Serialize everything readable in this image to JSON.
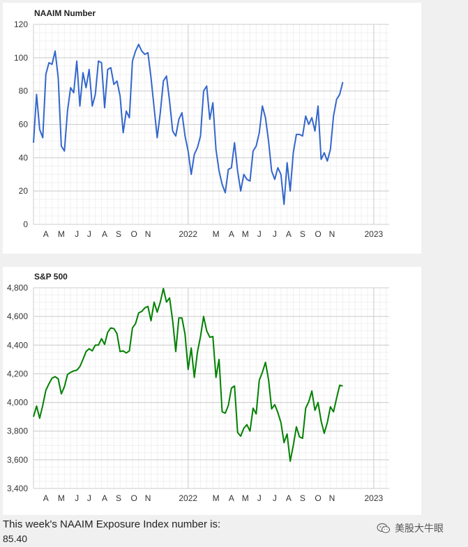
{
  "chart_data": [
    {
      "type": "line",
      "title": "NAAIM Number",
      "color": "#3366cc",
      "ylim": [
        0,
        120
      ],
      "yticks": [
        0,
        20,
        40,
        60,
        80,
        100,
        120
      ],
      "ytick_labels": [
        "0",
        "20",
        "40",
        "60",
        "80",
        "100",
        "120"
      ],
      "xlim": [
        0,
        115
      ],
      "xticks": [
        {
          "x": 4,
          "label": "A"
        },
        {
          "x": 9,
          "label": "M"
        },
        {
          "x": 14,
          "label": "J"
        },
        {
          "x": 18,
          "label": "J"
        },
        {
          "x": 23,
          "label": "A"
        },
        {
          "x": 27.5,
          "label": "S"
        },
        {
          "x": 32.5,
          "label": "O"
        },
        {
          "x": 37,
          "label": "N"
        },
        {
          "x": 50,
          "label": "2022"
        },
        {
          "x": 59,
          "label": "M"
        },
        {
          "x": 64,
          "label": "A"
        },
        {
          "x": 68.5,
          "label": "M"
        },
        {
          "x": 73,
          "label": "J"
        },
        {
          "x": 78,
          "label": "J"
        },
        {
          "x": 82.5,
          "label": "A"
        },
        {
          "x": 87,
          "label": "S"
        },
        {
          "x": 92,
          "label": "O"
        },
        {
          "x": 96.5,
          "label": "N"
        },
        {
          "x": 110,
          "label": "2023"
        }
      ],
      "grid": true,
      "values": [
        49,
        78,
        57,
        52,
        90,
        97,
        96,
        104,
        88,
        47,
        44,
        68,
        82,
        79,
        98,
        71,
        91,
        82,
        93,
        71,
        78,
        98,
        97,
        70,
        93,
        94,
        84,
        86,
        77,
        55,
        68,
        64,
        98,
        104,
        108,
        104,
        102,
        103,
        88,
        70,
        52,
        67,
        86,
        89,
        74,
        56,
        53,
        63,
        67,
        53,
        44,
        30,
        42,
        46,
        53,
        80,
        83,
        63,
        73,
        45,
        32,
        24,
        19,
        33,
        34,
        49,
        32,
        20,
        30,
        27,
        26,
        44,
        47,
        55,
        71,
        64,
        50,
        32,
        27,
        34,
        30,
        12,
        37,
        20,
        43,
        54,
        54,
        53,
        65,
        60,
        64,
        56,
        71,
        39,
        43,
        38,
        45,
        65,
        75,
        78,
        85.4
      ]
    },
    {
      "type": "line",
      "title": "S&P 500",
      "color": "#008000",
      "ylim": [
        3400,
        4800
      ],
      "yticks": [
        3400,
        3600,
        3800,
        4000,
        4200,
        4400,
        4600,
        4800
      ],
      "ytick_labels": [
        "3,400",
        "3,600",
        "3,800",
        "4,000",
        "4,200",
        "4,400",
        "4,600",
        "4,800"
      ],
      "xlim": [
        0,
        115
      ],
      "xticks": [
        {
          "x": 4,
          "label": "A"
        },
        {
          "x": 9,
          "label": "M"
        },
        {
          "x": 14,
          "label": "J"
        },
        {
          "x": 18,
          "label": "J"
        },
        {
          "x": 23,
          "label": "A"
        },
        {
          "x": 27.5,
          "label": "S"
        },
        {
          "x": 32.5,
          "label": "O"
        },
        {
          "x": 37,
          "label": "N"
        },
        {
          "x": 50,
          "label": "2022"
        },
        {
          "x": 59,
          "label": "M"
        },
        {
          "x": 64,
          "label": "A"
        },
        {
          "x": 68.5,
          "label": "M"
        },
        {
          "x": 73,
          "label": "J"
        },
        {
          "x": 78,
          "label": "J"
        },
        {
          "x": 82.5,
          "label": "A"
        },
        {
          "x": 87,
          "label": "S"
        },
        {
          "x": 92,
          "label": "O"
        },
        {
          "x": 96.5,
          "label": "N"
        },
        {
          "x": 110,
          "label": "2023"
        }
      ],
      "grid": true,
      "values": [
        3900,
        3975,
        3890,
        3980,
        4085,
        4130,
        4170,
        4180,
        4165,
        4060,
        4110,
        4195,
        4210,
        4220,
        4225,
        4250,
        4300,
        4355,
        4375,
        4360,
        4400,
        4400,
        4445,
        4405,
        4490,
        4520,
        4515,
        4480,
        4355,
        4360,
        4345,
        4360,
        4520,
        4550,
        4625,
        4635,
        4660,
        4670,
        4570,
        4700,
        4630,
        4700,
        4795,
        4700,
        4730,
        4570,
        4355,
        4590,
        4590,
        4475,
        4230,
        4380,
        4175,
        4350,
        4460,
        4600,
        4500,
        4455,
        4460,
        4175,
        4300,
        3935,
        3925,
        3980,
        4100,
        4115,
        3790,
        3765,
        3820,
        3845,
        3800,
        3960,
        3920,
        4155,
        4210,
        4280,
        4160,
        3955,
        3985,
        3930,
        3860,
        3720,
        3780,
        3590,
        3700,
        3830,
        3760,
        3750,
        3960,
        4005,
        4080,
        3945,
        4000,
        3870,
        3785,
        3860,
        3970,
        3935,
        4030,
        4120,
        4115
      ]
    }
  ],
  "footer": {
    "caption": "This week's NAAIM Exposure Index number is:",
    "value": "85.40"
  },
  "watermark": {
    "text": "美股大牛眼",
    "icon": "wechat-icon"
  }
}
